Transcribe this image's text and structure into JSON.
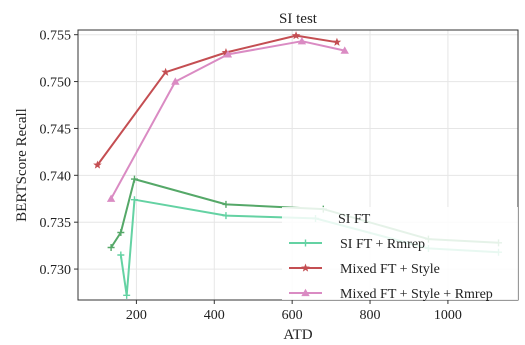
{
  "chart_data": {
    "type": "line",
    "title": "SI test",
    "xlabel": "ATD",
    "ylabel": "BERTScore Recall",
    "xlim": [
      50,
      1180
    ],
    "ylim": [
      0.7267,
      0.7555
    ],
    "xticks": [
      200,
      400,
      600,
      800,
      1000
    ],
    "yticks": [
      0.73,
      0.735,
      0.74,
      0.745,
      0.75,
      0.755
    ],
    "ytick_labels": [
      "0.730",
      "0.735",
      "0.740",
      "0.745",
      "0.750",
      "0.755"
    ],
    "grid": true,
    "legend_position": "bottom-right",
    "series": [
      {
        "name": "SI FT",
        "color": "#55a868",
        "marker": "plus",
        "x": [
          135,
          160,
          195,
          430,
          680,
          950,
          1130
        ],
        "y": [
          0.7323,
          0.7339,
          0.7396,
          0.7369,
          0.7364,
          0.7332,
          0.7328
        ]
      },
      {
        "name": "SI FT + Rmrep",
        "color": "#64d2a3",
        "marker": "plus",
        "x": [
          160,
          175,
          195,
          430,
          660,
          950,
          1130
        ],
        "y": [
          0.7315,
          0.7272,
          0.7374,
          0.7357,
          0.7354,
          0.7322,
          0.7318
        ]
      },
      {
        "name": "Mixed FT + Style",
        "color": "#c44e52",
        "marker": "star",
        "x": [
          100,
          275,
          430,
          610,
          715
        ],
        "y": [
          0.7411,
          0.751,
          0.7531,
          0.7549,
          0.7542
        ]
      },
      {
        "name": "Mixed FT + Style + Rmrep",
        "color": "#da8bc3",
        "marker": "triangle",
        "x": [
          135,
          300,
          435,
          625,
          735
        ],
        "y": [
          0.7375,
          0.75,
          0.7529,
          0.7543,
          0.7533
        ]
      }
    ]
  }
}
